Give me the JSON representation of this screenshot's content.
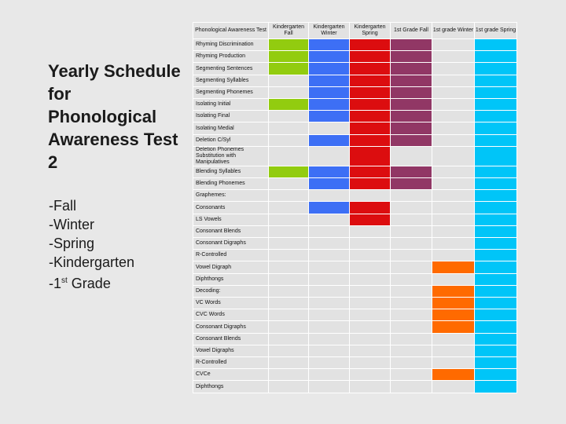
{
  "slide": {
    "title": "Yearly Schedule for Phonological Awareness Test 2",
    "list": [
      "-Fall",
      "-Winter",
      "-Spring",
      "-Kindergarten"
    ],
    "last_item_prefix": "-1",
    "last_item_sup": "st",
    "last_item_suffix": " Grade"
  },
  "colors": {
    "green": "#92cc0f",
    "blue": "#3d6ff5",
    "red": "#dc0d0f",
    "purple": "#913765",
    "orange": "#ff6a00",
    "cyan": "#00c5f8",
    "empty": "#e2e2e2"
  },
  "table": {
    "headers": [
      "Phonological Awareness Test",
      "Kindergarten Fall",
      "Kindergarten Winter",
      "Kindergarten Spring",
      "1st Grade Fall",
      "1st grade Winter",
      "1st grade Spring"
    ],
    "rows": [
      {
        "skill": "Rhyming Discrimination",
        "marks": [
          "g",
          "b",
          "r",
          "p",
          "",
          "c"
        ]
      },
      {
        "skill": "Rhyming Production",
        "marks": [
          "g",
          "b",
          "r",
          "p",
          "",
          "c"
        ]
      },
      {
        "skill": "Segmenting Sentences",
        "marks": [
          "g",
          "b",
          "r",
          "p",
          "",
          "c"
        ]
      },
      {
        "skill": "Segmenting Syllables",
        "marks": [
          "",
          "b",
          "r",
          "p",
          "",
          "c"
        ]
      },
      {
        "skill": "Segmenting Phonemes",
        "marks": [
          "",
          "b",
          "r",
          "p",
          "",
          "c"
        ]
      },
      {
        "skill": "Isolating Initial",
        "marks": [
          "g",
          "b",
          "r",
          "p",
          "",
          "c"
        ]
      },
      {
        "skill": "Isolating Final",
        "marks": [
          "",
          "b",
          "r",
          "p",
          "",
          "c"
        ]
      },
      {
        "skill": "Isolating Medial",
        "marks": [
          "",
          "",
          "r",
          "p",
          "",
          "c"
        ]
      },
      {
        "skill": "Deletion C/Syl",
        "marks": [
          "",
          "b",
          "r",
          "p",
          "",
          "c"
        ]
      },
      {
        "skill": "Deletion Phonemes Substitution with Manipulatives",
        "marks": [
          "",
          "",
          "r",
          "",
          "",
          "c"
        ]
      },
      {
        "skill": "Blending Syllables",
        "marks": [
          "g",
          "b",
          "r",
          "p",
          "",
          "c"
        ]
      },
      {
        "skill": "Blending Phonemes",
        "marks": [
          "",
          "b",
          "r",
          "p",
          "",
          "c"
        ]
      },
      {
        "skill": "Graphemes:",
        "marks": [
          "",
          "",
          "",
          "",
          "",
          "c"
        ]
      },
      {
        "skill": "Consonants",
        "marks": [
          "",
          "b",
          "r",
          "",
          "",
          "c"
        ]
      },
      {
        "skill": "LS Vowels",
        "marks": [
          "",
          "",
          "r",
          "",
          "",
          "c"
        ]
      },
      {
        "skill": "Consonant Blends",
        "marks": [
          "",
          "",
          "",
          "",
          "",
          "c"
        ]
      },
      {
        "skill": "Consonant Digraphs",
        "marks": [
          "",
          "",
          "",
          "",
          "",
          "c"
        ]
      },
      {
        "skill": "R-Controlled",
        "marks": [
          "",
          "",
          "",
          "",
          "",
          "c"
        ]
      },
      {
        "skill": "Vowel Digraph",
        "marks": [
          "",
          "",
          "",
          "",
          "o",
          "c"
        ]
      },
      {
        "skill": "Diphthongs",
        "marks": [
          "",
          "",
          "",
          "",
          "",
          "c"
        ]
      },
      {
        "skill": "Decoding:",
        "marks": [
          "",
          "",
          "",
          "",
          "o",
          "c"
        ]
      },
      {
        "skill": "VC Words",
        "marks": [
          "",
          "",
          "",
          "",
          "o",
          "c"
        ]
      },
      {
        "skill": "CVC Words",
        "marks": [
          "",
          "",
          "",
          "",
          "o",
          "c"
        ]
      },
      {
        "skill": "Consonant Digraphs",
        "marks": [
          "",
          "",
          "",
          "",
          "o",
          "c"
        ]
      },
      {
        "skill": "Consonant Blends",
        "marks": [
          "",
          "",
          "",
          "",
          "",
          "c"
        ]
      },
      {
        "skill": "Vowel Digraphs",
        "marks": [
          "",
          "",
          "",
          "",
          "",
          "c"
        ]
      },
      {
        "skill": "R-Controlled",
        "marks": [
          "",
          "",
          "",
          "",
          "",
          "c"
        ]
      },
      {
        "skill": "CVCe",
        "marks": [
          "",
          "",
          "",
          "",
          "o",
          "c"
        ]
      },
      {
        "skill": "Diphthongs",
        "marks": [
          "",
          "",
          "",
          "",
          "",
          "c"
        ]
      }
    ]
  }
}
